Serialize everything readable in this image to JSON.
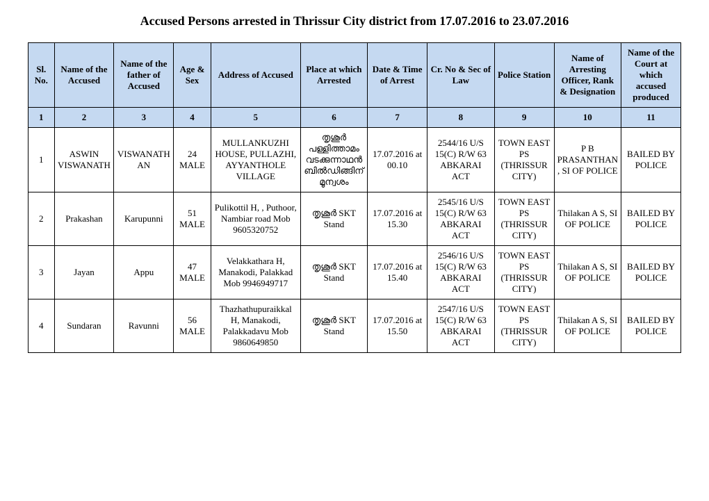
{
  "title": "Accused Persons arrested in   Thrissur City   district from   17.07.2016 to 23.07.2016",
  "headers": {
    "sl": "Sl. No.",
    "accused": "Name of the Accused",
    "father": "Name of the father of Accused",
    "age": "Age & Sex",
    "address": "Address of Accused",
    "place": "Place at which Arrested",
    "datetime": "Date & Time of Arrest",
    "crno": "Cr. No & Sec of Law",
    "station": "Police Station",
    "officer": "Name of Arresting Officer, Rank & Designation",
    "court": "Name of the Court at which accused produced"
  },
  "colnums": [
    "1",
    "2",
    "3",
    "4",
    "5",
    "6",
    "7",
    "8",
    "9",
    "10",
    "11"
  ],
  "rows": [
    {
      "sl": "1",
      "accused": "ASWIN VISWANATH",
      "father": "VISWANATHAN",
      "age": "24 MALE",
      "address": "MULLANKUZHI HOUSE, PULLAZHI, AYYANTHOLE VILLAGE",
      "place": "തൃശൂർ പള്ളിത്താമം വടക്കുന്നാഥൻ ബിൽഡിങ്ങിന് മൂന്വശം",
      "datetime": "17.07.2016 at 00.10",
      "crno": "2544/16 U/S 15(C) R/W 63 ABKARAI ACT",
      "station": "TOWN EAST  PS (THRISSUR CITY)",
      "officer": "P B PRASANTHAN, SI OF POLICE",
      "court": "BAILED BY POLICE"
    },
    {
      "sl": "2",
      "accused": "Prakashan",
      "father": "Karupunni",
      "age": "51 MALE",
      "address": "Pulikottil H, , Puthoor, Nambiar road Mob 9605320752",
      "place": "തൃശൂർ SKT Stand",
      "datetime": "17.07.2016 at 15.30",
      "crno": "2545/16 U/S 15(C) R/W 63 ABKARAI ACT",
      "station": "TOWN EAST  PS (THRISSUR CITY)",
      "officer": "Thilakan A S, SI OF POLICE",
      "court": "BAILED BY POLICE"
    },
    {
      "sl": "3",
      "accused": "Jayan",
      "father": "Appu",
      "age": "47 MALE",
      "address": "Velakkathara H, Manakodi, Palakkad Mob 9946949717",
      "place": "തൃശൂർ SKT Stand",
      "datetime": "17.07.2016 at 15.40",
      "crno": "2546/16 U/S 15(C) R/W 63 ABKARAI ACT",
      "station": "TOWN EAST  PS (THRISSUR CITY)",
      "officer": "Thilakan A S, SI OF POLICE",
      "court": "BAILED BY POLICE"
    },
    {
      "sl": "4",
      "accused": "Sundaran",
      "father": "Ravunni",
      "age": "56 MALE",
      "address": "Thazhathupuraikkal H, Manakodi, Palakkadavu Mob 9860649850",
      "place": "തൃശൂർ SKT Stand",
      "datetime": "17.07.2016 at 15.50",
      "crno": "2547/16 U/S 15(C) R/W 63 ABKARAI ACT",
      "station": "TOWN EAST  PS (THRISSUR CITY)",
      "officer": "Thilakan A S, SI OF POLICE",
      "court": "BAILED BY POLICE"
    }
  ]
}
